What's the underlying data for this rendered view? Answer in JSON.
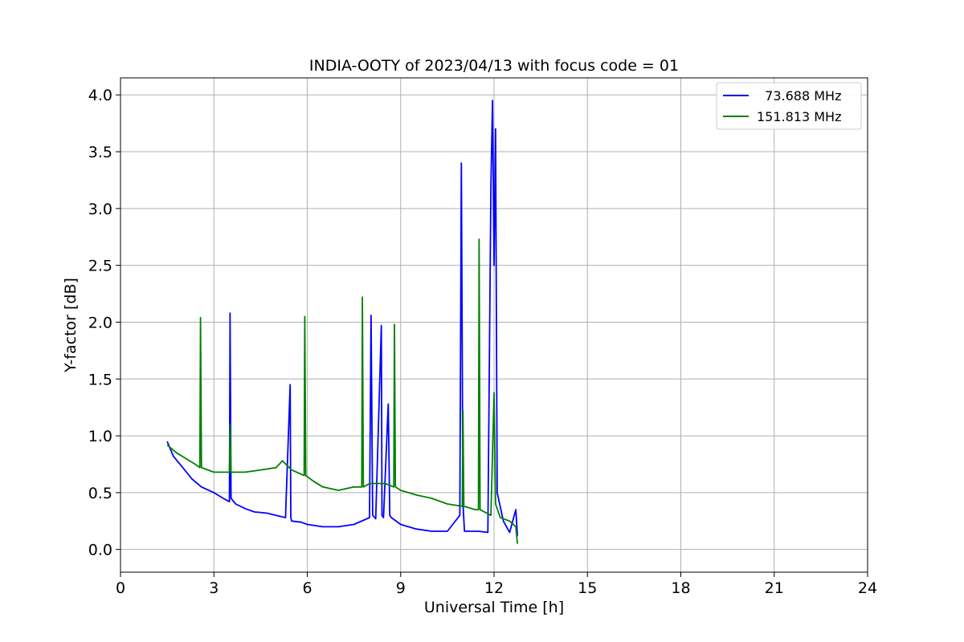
{
  "chart_data": {
    "type": "line",
    "title": "INDIA-OOTY of 2023/04/13 with focus code = 01",
    "xlabel": "Universal Time [h]",
    "ylabel": "Y-factor [dB]",
    "xlim": [
      0,
      24
    ],
    "ylim": [
      -0.2,
      4.15
    ],
    "xticks": [
      0,
      3,
      6,
      9,
      12,
      15,
      18,
      21,
      24
    ],
    "xtick_labels": [
      "0",
      "3",
      "6",
      "9",
      "12",
      "15",
      "18",
      "21",
      "24"
    ],
    "yticks": [
      0.0,
      0.5,
      1.0,
      1.5,
      2.0,
      2.5,
      3.0,
      3.5,
      4.0
    ],
    "ytick_labels": [
      "0.0",
      "0.5",
      "1.0",
      "1.5",
      "2.0",
      "2.5",
      "3.0",
      "3.5",
      "4.0"
    ],
    "grid": true,
    "legend_position": "top-right",
    "series": [
      {
        "name": "  73.688 MHz",
        "color": "#0000ff",
        "x": [
          1.5,
          1.7,
          2.0,
          2.3,
          2.6,
          3.0,
          3.3,
          3.5,
          3.52,
          3.55,
          3.7,
          4.0,
          4.3,
          4.7,
          5.0,
          5.3,
          5.45,
          5.47,
          5.5,
          5.8,
          6.0,
          6.5,
          7.0,
          7.5,
          8.0,
          8.05,
          8.1,
          8.2,
          8.38,
          8.4,
          8.45,
          8.6,
          8.65,
          8.7,
          9.0,
          9.5,
          10.0,
          10.5,
          10.9,
          10.95,
          11.0,
          11.05,
          11.5,
          11.8,
          11.9,
          11.95,
          12.0,
          12.05,
          12.1,
          12.3,
          12.5,
          12.7,
          12.75
        ],
        "values": [
          0.95,
          0.82,
          0.72,
          0.62,
          0.55,
          0.5,
          0.45,
          0.42,
          2.08,
          0.45,
          0.4,
          0.36,
          0.33,
          0.32,
          0.3,
          0.28,
          1.45,
          0.28,
          0.25,
          0.24,
          0.22,
          0.2,
          0.2,
          0.22,
          0.28,
          2.06,
          0.3,
          0.27,
          1.97,
          0.3,
          0.28,
          1.28,
          0.3,
          0.28,
          0.22,
          0.18,
          0.16,
          0.16,
          0.3,
          3.4,
          0.4,
          0.16,
          0.16,
          0.15,
          3.2,
          3.95,
          2.5,
          3.7,
          0.5,
          0.25,
          0.15,
          0.35,
          0.12
        ]
      },
      {
        "name": "151.813 MHz",
        "color": "#008000",
        "x": [
          1.5,
          1.8,
          2.1,
          2.4,
          2.55,
          2.57,
          2.6,
          3.0,
          3.5,
          3.52,
          3.55,
          4.0,
          4.5,
          5.0,
          5.2,
          5.5,
          5.9,
          5.92,
          5.95,
          6.2,
          6.5,
          7.0,
          7.5,
          7.75,
          7.77,
          7.8,
          8.0,
          8.5,
          8.78,
          8.8,
          8.83,
          9.0,
          9.5,
          10.0,
          10.5,
          10.98,
          11.0,
          11.03,
          11.4,
          11.5,
          11.52,
          11.55,
          11.9,
          12.0,
          12.05,
          12.2,
          12.5,
          12.7,
          12.75
        ],
        "values": [
          0.92,
          0.85,
          0.8,
          0.75,
          0.72,
          2.04,
          0.72,
          0.68,
          0.68,
          1.1,
          0.68,
          0.68,
          0.7,
          0.72,
          0.78,
          0.7,
          0.65,
          2.05,
          0.65,
          0.6,
          0.55,
          0.52,
          0.55,
          0.55,
          2.22,
          0.55,
          0.58,
          0.58,
          0.55,
          1.98,
          0.55,
          0.52,
          0.48,
          0.45,
          0.4,
          0.38,
          1.22,
          0.38,
          0.35,
          0.35,
          2.73,
          0.35,
          0.3,
          1.38,
          0.4,
          0.28,
          0.25,
          0.2,
          0.05
        ]
      }
    ]
  }
}
